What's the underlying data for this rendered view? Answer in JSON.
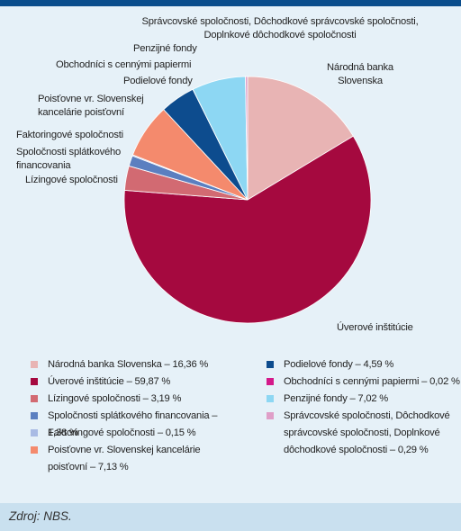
{
  "chart_data": {
    "type": "pie",
    "title": "",
    "start_angle_deg": 0,
    "direction": "clockwise",
    "slices": [
      {
        "label": "Národná banka Slovenska",
        "value": 16.36,
        "color": "#e8b4b4",
        "chart_label": "Národná banka\nSlovenska",
        "legend_text": "Národná banka Slovenska – 16,36 %"
      },
      {
        "label": "Úverové inštitúcie",
        "value": 59.87,
        "color": "#a5093f",
        "chart_label": "Úverové inštitúcie",
        "legend_text": "Úverové inštitúcie – 59,87 %"
      },
      {
        "label": "Lízingové spoločnosti",
        "value": 3.19,
        "color": "#d26a72",
        "chart_label": "Lízingové spoločnosti",
        "legend_text": "Lízingové spoločnosti – 3,19 %"
      },
      {
        "label": "Spoločnosti splátkového financovania",
        "value": 1.38,
        "color": "#5b7fc0",
        "chart_label": "Spoločnosti splátkového\nfinancovania",
        "legend_text": "Spoločnosti splátkového financovania – 1,38 %"
      },
      {
        "label": "Faktoringové spoločnosti",
        "value": 0.15,
        "color": "#a9bbe4",
        "chart_label": "Faktoringové spoločnosti",
        "legend_text": "Faktoringové spoločnosti – 0,15 %"
      },
      {
        "label": "Poisťovne vr. Slovenskej kancelárie poisťovní",
        "value": 7.13,
        "color": "#f48a6d",
        "chart_label": "Poisťovne vr. Slovenskej\nkancelárie poisťovní",
        "legend_text": "Poisťovne vr. Slovenskej kancelárie poisťovní – 7,13 %"
      },
      {
        "label": "Podielové fondy",
        "value": 4.59,
        "color": "#0d4c8e",
        "chart_label": "Podielové fondy",
        "legend_text": "Podielové fondy – 4,59 %"
      },
      {
        "label": "Obchodníci s cennými papiermi",
        "value": 0.02,
        "color": "#d4198a",
        "chart_label": "Obchodníci s cennými papiermi",
        "legend_text": "Obchodníci s cennými papiermi – 0,02 %"
      },
      {
        "label": "Penzijné fondy",
        "value": 7.02,
        "color": "#8dd7f3",
        "chart_label": "Penzijné fondy",
        "legend_text": "Penzijné fondy – 7,02 %"
      },
      {
        "label": "Správcovské spoločnosti, Dôchodkové správcovské spoločnosti, Doplnkové dôchodkové spoločnosti",
        "value": 0.29,
        "color": "#df9fc8",
        "chart_label": "Správcovské spoločnosti, Dôchodkové správcovské spoločnosti,\nDoplnkové dôchodkové spoločnosti",
        "legend_text": "Správcovské spoločnosti, Dôchodkové správcovské spoločnosti, Doplnkové dôchodkové spoločnosti – 0,29 %"
      }
    ]
  },
  "source": "Zdroj: NBS."
}
